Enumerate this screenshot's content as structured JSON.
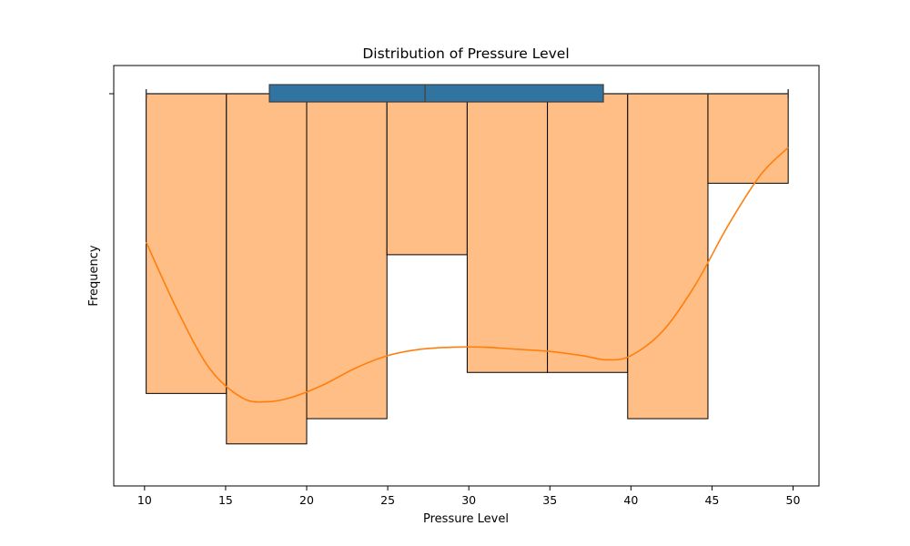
{
  "chart_data": {
    "type": "bar",
    "title": "Distribution of Pressure Level",
    "xlabel": "Pressure Level",
    "ylabel": "Frequency",
    "xlim": [
      8.1,
      51.6
    ],
    "x_ticks": [
      10,
      15,
      20,
      25,
      30,
      35,
      40,
      45,
      50
    ],
    "histogram": {
      "bin_edges": [
        10.1,
        15.05,
        20.0,
        24.95,
        29.9,
        34.85,
        39.8,
        44.75,
        49.7
      ],
      "bar_bottoms": [
        0.78,
        0.9,
        0.84,
        0.45,
        0.73,
        0.73,
        0.84,
        0.28
      ],
      "color": "#ffbe86",
      "edge_color": "#000000"
    },
    "kde": {
      "color": "#ff7f0e",
      "x": [
        10.1,
        12.0,
        14.0,
        16.0,
        17.5,
        19.0,
        21.0,
        23.0,
        25.0,
        27.0,
        29.0,
        31.0,
        33.0,
        35.0,
        37.0,
        38.5,
        40.0,
        42.0,
        44.0,
        46.0,
        48.0,
        49.7
      ],
      "y": [
        0.42,
        0.58,
        0.72,
        0.79,
        0.8,
        0.79,
        0.76,
        0.72,
        0.69,
        0.675,
        0.67,
        0.67,
        0.675,
        0.68,
        0.69,
        0.7,
        0.69,
        0.63,
        0.52,
        0.38,
        0.26,
        0.195
      ]
    },
    "boxplot": {
      "whisker_low": 10.1,
      "q1": 17.7,
      "median": 27.3,
      "q3": 38.3,
      "whisker_high": 49.7,
      "color": "#3274a1"
    }
  }
}
